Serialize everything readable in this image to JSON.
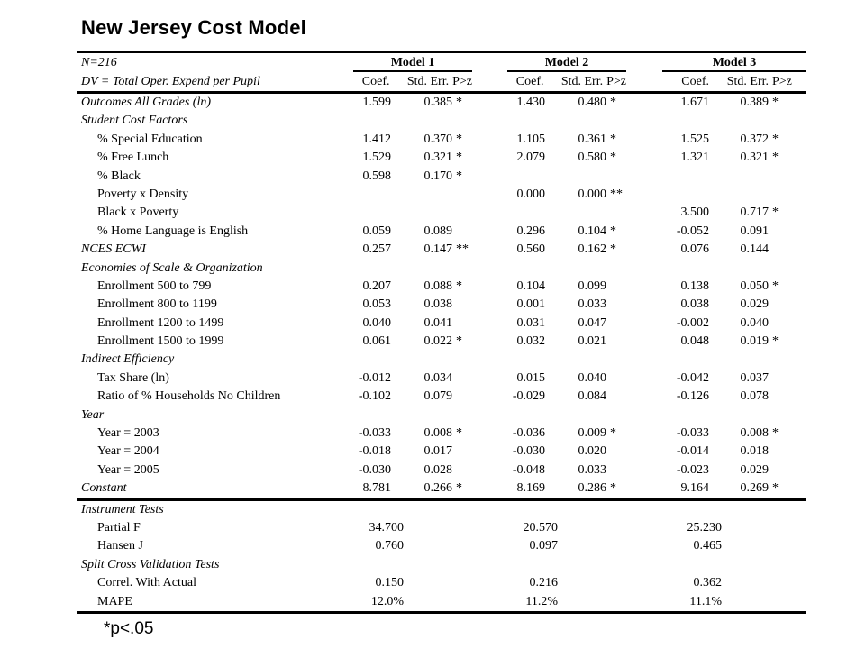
{
  "title": "New Jersey Cost Model",
  "footnote": "*p<.05",
  "colors": {
    "text": "#000000",
    "background": "#ffffff"
  },
  "table": {
    "meta": {
      "n": "N=216",
      "dv": "DV = Total Oper. Expend per Pupil"
    },
    "models": [
      "Model 1",
      "Model 2",
      "Model 3"
    ],
    "subheaders": [
      "Coef.",
      "Std. Err.",
      "P>z"
    ],
    "rows": [
      {
        "label": "Outcomes All Grades (ln)",
        "italic": true,
        "indent": false,
        "cells": [
          [
            "1.599",
            "0.385",
            "*"
          ],
          [
            "1.430",
            "0.480",
            "*"
          ],
          [
            "1.671",
            "0.389",
            "*"
          ]
        ]
      },
      {
        "label": "Student Cost Factors",
        "italic": true,
        "indent": false,
        "cells": [
          [
            "",
            "",
            ""
          ],
          [
            "",
            "",
            ""
          ],
          [
            "",
            "",
            ""
          ]
        ]
      },
      {
        "label": "% Special Education",
        "italic": false,
        "indent": true,
        "cells": [
          [
            "1.412",
            "0.370",
            "*"
          ],
          [
            "1.105",
            "0.361",
            "*"
          ],
          [
            "1.525",
            "0.372",
            "*"
          ]
        ]
      },
      {
        "label": "% Free Lunch",
        "italic": false,
        "indent": true,
        "cells": [
          [
            "1.529",
            "0.321",
            "*"
          ],
          [
            "2.079",
            "0.580",
            "*"
          ],
          [
            "1.321",
            "0.321",
            "*"
          ]
        ]
      },
      {
        "label": "% Black",
        "italic": false,
        "indent": true,
        "cells": [
          [
            "0.598",
            "0.170",
            "*"
          ],
          [
            "",
            "",
            ""
          ],
          [
            "",
            "",
            ""
          ]
        ]
      },
      {
        "label": "Poverty x Density",
        "italic": false,
        "indent": true,
        "cells": [
          [
            "",
            "",
            ""
          ],
          [
            "0.000",
            "0.000",
            "**"
          ],
          [
            "",
            "",
            ""
          ]
        ]
      },
      {
        "label": "Black x Poverty",
        "italic": false,
        "indent": true,
        "cells": [
          [
            "",
            "",
            ""
          ],
          [
            "",
            "",
            ""
          ],
          [
            "3.500",
            "0.717",
            "*"
          ]
        ]
      },
      {
        "label": "% Home Language is English",
        "italic": false,
        "indent": true,
        "cells": [
          [
            "0.059",
            "0.089",
            ""
          ],
          [
            "0.296",
            "0.104",
            "*"
          ],
          [
            "-0.052",
            "0.091",
            ""
          ]
        ]
      },
      {
        "label": "NCES ECWI",
        "italic": true,
        "indent": false,
        "cells": [
          [
            "0.257",
            "0.147",
            "**"
          ],
          [
            "0.560",
            "0.162",
            "*"
          ],
          [
            "0.076",
            "0.144",
            ""
          ]
        ]
      },
      {
        "label": "Economies of Scale & Organization",
        "italic": true,
        "indent": false,
        "cells": [
          [
            "",
            "",
            ""
          ],
          [
            "",
            "",
            ""
          ],
          [
            "",
            "",
            ""
          ]
        ]
      },
      {
        "label": "Enrollment 500 to 799",
        "italic": false,
        "indent": true,
        "cells": [
          [
            "0.207",
            "0.088",
            "*"
          ],
          [
            "0.104",
            "0.099",
            ""
          ],
          [
            "0.138",
            "0.050",
            "*"
          ]
        ]
      },
      {
        "label": "Enrollment 800 to 1199",
        "italic": false,
        "indent": true,
        "cells": [
          [
            "0.053",
            "0.038",
            ""
          ],
          [
            "0.001",
            "0.033",
            ""
          ],
          [
            "0.038",
            "0.029",
            ""
          ]
        ]
      },
      {
        "label": "Enrollment 1200 to 1499",
        "italic": false,
        "indent": true,
        "cells": [
          [
            "0.040",
            "0.041",
            ""
          ],
          [
            "0.031",
            "0.047",
            ""
          ],
          [
            "-0.002",
            "0.040",
            ""
          ]
        ]
      },
      {
        "label": "Enrollment 1500 to 1999",
        "italic": false,
        "indent": true,
        "cells": [
          [
            "0.061",
            "0.022",
            "*"
          ],
          [
            "0.032",
            "0.021",
            ""
          ],
          [
            "0.048",
            "0.019",
            "*"
          ]
        ]
      },
      {
        "label": "Indirect Efficiency",
        "italic": true,
        "indent": false,
        "cells": [
          [
            "",
            "",
            ""
          ],
          [
            "",
            "",
            ""
          ],
          [
            "",
            "",
            ""
          ]
        ]
      },
      {
        "label": "Tax Share (ln)",
        "italic": false,
        "indent": true,
        "cells": [
          [
            "-0.012",
            "0.034",
            ""
          ],
          [
            "0.015",
            "0.040",
            ""
          ],
          [
            "-0.042",
            "0.037",
            ""
          ]
        ]
      },
      {
        "label": "Ratio of % Households No Children",
        "italic": false,
        "indent": true,
        "cells": [
          [
            "-0.102",
            "0.079",
            ""
          ],
          [
            "-0.029",
            "0.084",
            ""
          ],
          [
            "-0.126",
            "0.078",
            ""
          ]
        ]
      },
      {
        "label": "Year",
        "italic": true,
        "indent": false,
        "cells": [
          [
            "",
            "",
            ""
          ],
          [
            "",
            "",
            ""
          ],
          [
            "",
            "",
            ""
          ]
        ]
      },
      {
        "label": "Year = 2003",
        "italic": false,
        "indent": true,
        "cells": [
          [
            "-0.033",
            "0.008",
            "*"
          ],
          [
            "-0.036",
            "0.009",
            "*"
          ],
          [
            "-0.033",
            "0.008",
            "*"
          ]
        ]
      },
      {
        "label": "Year = 2004",
        "italic": false,
        "indent": true,
        "cells": [
          [
            "-0.018",
            "0.017",
            ""
          ],
          [
            "-0.030",
            "0.020",
            ""
          ],
          [
            "-0.014",
            "0.018",
            ""
          ]
        ]
      },
      {
        "label": "Year = 2005",
        "italic": false,
        "indent": true,
        "cells": [
          [
            "-0.030",
            "0.028",
            ""
          ],
          [
            "-0.048",
            "0.033",
            ""
          ],
          [
            "-0.023",
            "0.029",
            ""
          ]
        ]
      },
      {
        "label": "Constant",
        "italic": true,
        "indent": false,
        "cells": [
          [
            "8.781",
            "0.266",
            "*"
          ],
          [
            "8.169",
            "0.286",
            "*"
          ],
          [
            "9.164",
            "0.269",
            "*"
          ]
        ]
      }
    ],
    "footer_rows": [
      {
        "label": "Instrument Tests",
        "italic": true,
        "indent": false,
        "cells": [
          [
            "",
            "",
            ""
          ],
          [
            "",
            "",
            ""
          ],
          [
            "",
            "",
            ""
          ]
        ]
      },
      {
        "label": "Partial F",
        "italic": false,
        "indent": true,
        "cells": [
          [
            "34.700",
            "",
            ""
          ],
          [
            "20.570",
            "",
            ""
          ],
          [
            "25.230",
            "",
            ""
          ]
        ]
      },
      {
        "label": "Hansen J",
        "italic": false,
        "indent": true,
        "cells": [
          [
            "0.760",
            "",
            ""
          ],
          [
            "0.097",
            "",
            ""
          ],
          [
            "0.465",
            "",
            ""
          ]
        ]
      },
      {
        "label": "Split Cross Validation Tests",
        "italic": true,
        "indent": false,
        "cells": [
          [
            "",
            "",
            ""
          ],
          [
            "",
            "",
            ""
          ],
          [
            "",
            "",
            ""
          ]
        ]
      },
      {
        "label": "Correl. With Actual",
        "italic": false,
        "indent": true,
        "cells": [
          [
            "0.150",
            "",
            ""
          ],
          [
            "0.216",
            "",
            ""
          ],
          [
            "0.362",
            "",
            ""
          ]
        ]
      },
      {
        "label": "MAPE",
        "italic": false,
        "indent": true,
        "cells": [
          [
            "12.0%",
            "",
            ""
          ],
          [
            "11.2%",
            "",
            ""
          ],
          [
            "11.1%",
            "",
            ""
          ]
        ]
      }
    ]
  }
}
